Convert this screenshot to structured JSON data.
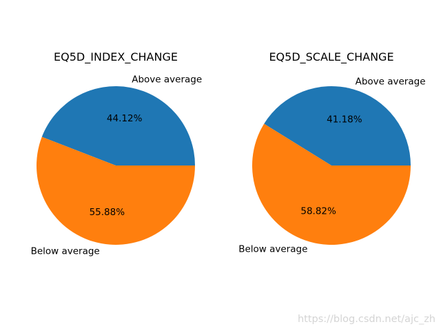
{
  "chart_data": [
    {
      "type": "pie",
      "title": "EQ5D_INDEX_CHANGE",
      "labels": [
        "Above average",
        "Below average"
      ],
      "values": [
        44.12,
        55.88
      ],
      "autopct": [
        "44.12%",
        "55.88%"
      ],
      "colors": [
        "#1f77b4",
        "#ff7f0e"
      ]
    },
    {
      "type": "pie",
      "title": "EQ5D_SCALE_CHANGE",
      "labels": [
        "Above average",
        "Below average"
      ],
      "values": [
        41.18,
        58.82
      ],
      "autopct": [
        "41.18%",
        "58.82%"
      ],
      "colors": [
        "#1f77b4",
        "#ff7f0e"
      ]
    }
  ],
  "watermark": "https://blog.csdn.net/ajc_zh"
}
